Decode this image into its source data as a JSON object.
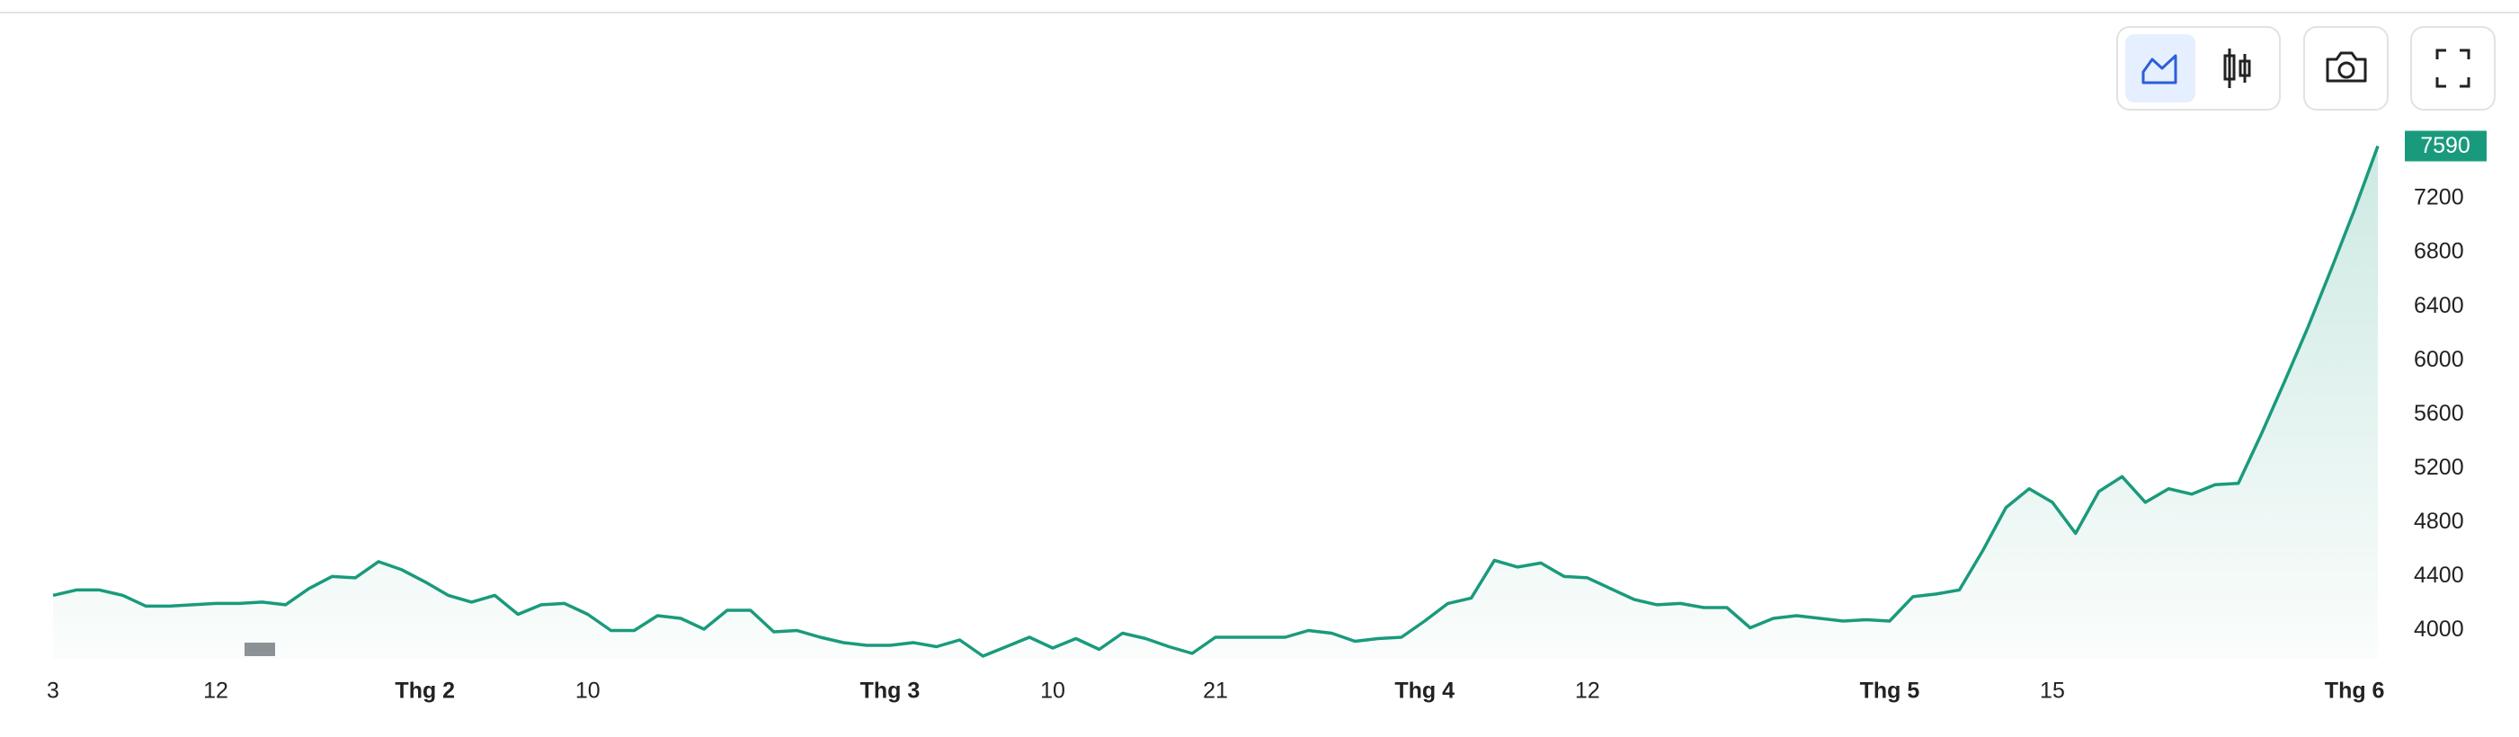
{
  "chart_data": {
    "type": "area",
    "categories": [
      "3",
      null,
      null,
      null,
      null,
      null,
      null,
      "12",
      null,
      null,
      null,
      null,
      null,
      null,
      null,
      null,
      "Thg 2",
      null,
      null,
      null,
      null,
      null,
      null,
      "10",
      null,
      null,
      null,
      null,
      null,
      null,
      null,
      null,
      null,
      null,
      null,
      null,
      "Thg 3",
      null,
      null,
      null,
      null,
      null,
      null,
      "10",
      null,
      null,
      null,
      null,
      null,
      null,
      "21",
      null,
      null,
      null,
      null,
      null,
      null,
      null,
      null,
      "Thg 4",
      null,
      null,
      null,
      null,
      null,
      null,
      "12",
      null,
      null,
      null,
      null,
      null,
      null,
      null,
      null,
      null,
      null,
      null,
      null,
      "Thg 5",
      null,
      null,
      null,
      null,
      null,
      null,
      "15",
      null,
      null,
      null,
      null,
      null,
      null,
      null,
      null,
      null,
      null,
      null,
      null,
      "Thg 6",
      null
    ],
    "values": [
      4260,
      4300,
      4300,
      4260,
      4180,
      4180,
      4190,
      4200,
      4200,
      4210,
      4190,
      4310,
      4400,
      4390,
      4510,
      4450,
      4360,
      4260,
      4210,
      4260,
      4120,
      4190,
      4200,
      4120,
      4000,
      4000,
      4110,
      4090,
      4010,
      4150,
      4150,
      3990,
      4000,
      3950,
      3910,
      3890,
      3890,
      3910,
      3880,
      3930,
      3810,
      3880,
      3950,
      3870,
      3940,
      3860,
      3980,
      3940,
      3880,
      3830,
      3950,
      3950,
      3950,
      3950,
      4000,
      3980,
      3920,
      3940,
      3950,
      4070,
      4200,
      4240,
      4520,
      4470,
      4500,
      4400,
      4390,
      4310,
      4230,
      4190,
      4200,
      4170,
      4170,
      4020,
      4090,
      4110,
      4090,
      4070,
      4080,
      4070,
      4250,
      4270,
      4300,
      4590,
      4910,
      5050,
      4950,
      4720,
      5030,
      5140,
      4950,
      5050,
      5010,
      5080,
      5090,
      5460,
      5850,
      6250,
      6680,
      7120,
      7590
    ],
    "color": "#1a9a7c",
    "ylim": [
      3790,
      7660
    ],
    "yticks": [
      4000,
      4400,
      4800,
      5200,
      5600,
      6000,
      6400,
      6800,
      7200
    ],
    "grid": false
  }
}
